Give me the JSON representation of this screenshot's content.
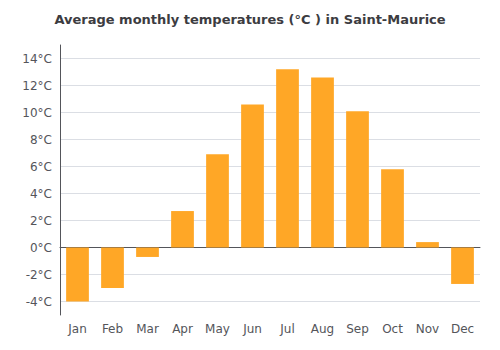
{
  "chart_data": {
    "type": "bar",
    "title": "Average monthly temperatures (°C ) in Saint-Maurice",
    "categories": [
      "Jan",
      "Feb",
      "Mar",
      "Apr",
      "May",
      "Jun",
      "Jul",
      "Aug",
      "Sep",
      "Oct",
      "Nov",
      "Dec"
    ],
    "values": [
      -4.0,
      -3.0,
      -0.7,
      2.7,
      6.9,
      10.6,
      13.2,
      12.6,
      10.1,
      5.8,
      0.4,
      -2.7
    ],
    "color": "#FFA726",
    "ylim": [
      -5,
      15
    ],
    "yticks": [
      {
        "value": -4,
        "label": "-4°C"
      },
      {
        "value": -2,
        "label": "-2°C"
      },
      {
        "value": 0,
        "label": "0°C"
      },
      {
        "value": 2,
        "label": "2°C"
      },
      {
        "value": 4,
        "label": "4°C"
      },
      {
        "value": 6,
        "label": "6°C"
      },
      {
        "value": 8,
        "label": "8°C"
      },
      {
        "value": 10,
        "label": "10°C"
      },
      {
        "value": 12,
        "label": "12°C"
      },
      {
        "value": 14,
        "label": "14°C"
      }
    ],
    "grid": true
  }
}
